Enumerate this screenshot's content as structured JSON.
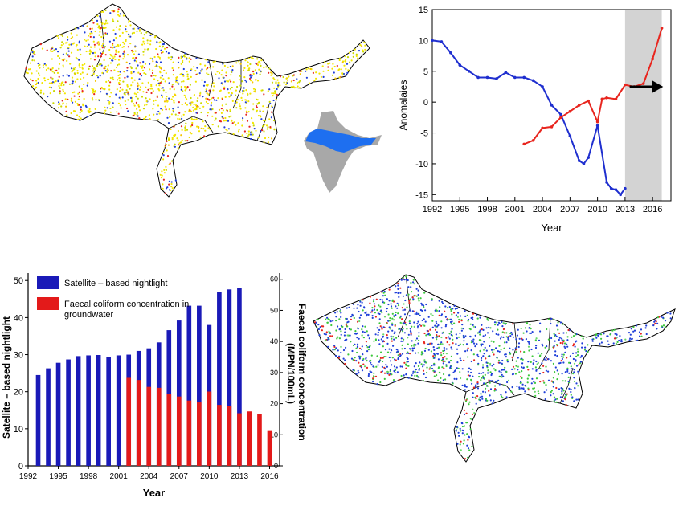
{
  "chart_data": [
    {
      "type": "line",
      "title": "",
      "xlabel": "Year",
      "ylabel": "Anomalaies",
      "xlim": [
        1992,
        2018
      ],
      "ylim": [
        -16,
        15
      ],
      "xticks": [
        "1992",
        "1995",
        "1998",
        "2001",
        "2004",
        "2007",
        "2010",
        "2013",
        "2016"
      ],
      "yticks": [
        "-15",
        "-10",
        "-5",
        "0",
        "5",
        "10",
        "15"
      ],
      "highlight_region": {
        "from": 2013,
        "to": 2017,
        "color": "#d3d3d3"
      },
      "trend_arrow": {
        "from": 2013.5,
        "to": 2016.8,
        "y": 2.5,
        "color": "#000000"
      },
      "series": [
        {
          "name": "",
          "color": "#1f2fcf",
          "x": [
            1992,
            1993,
            1994,
            1995,
            1996,
            1997,
            1998,
            1999,
            2000,
            2001,
            2002,
            2003,
            2004,
            2005,
            2006,
            2007,
            2008,
            2008.5,
            2009,
            2010,
            2011,
            2011.5,
            2012,
            2012.5,
            2013
          ],
          "y": [
            10,
            9.8,
            8,
            6,
            5,
            4,
            4,
            3.8,
            4.8,
            4,
            4,
            3.5,
            2.5,
            -0.5,
            -2,
            -5.5,
            -9.5,
            -10,
            -9,
            -3.8,
            -13,
            -14,
            -14.2,
            -15,
            -14
          ]
        },
        {
          "name": "",
          "color": "#e8251e",
          "x": [
            2002,
            2003,
            2004,
            2005,
            2006,
            2007,
            2008,
            2009,
            2010,
            2010.5,
            2011,
            2012,
            2013,
            2014,
            2015,
            2016,
            2017
          ],
          "y": [
            -6.8,
            -6.2,
            -4.2,
            -4,
            -2.5,
            -1.5,
            -0.5,
            0.2,
            -3.2,
            0.5,
            0.7,
            0.5,
            2.8,
            2.5,
            3,
            7,
            12
          ]
        }
      ]
    },
    {
      "type": "bar",
      "title": "",
      "xlabel": "Year",
      "ylabel": "Satellite – based nightlight",
      "y2label": "Faecal coliform concentration (MPN/100mL)",
      "ylim": [
        0,
        52
      ],
      "y2lim": [
        0,
        62
      ],
      "xlim": [
        1992,
        2017
      ],
      "xticks": [
        "1992",
        "1995",
        "1998",
        "2001",
        "2004",
        "2007",
        "2010",
        "2013",
        "2016"
      ],
      "yticks": [
        "0",
        "10",
        "20",
        "30",
        "40",
        "50"
      ],
      "y2ticks": [
        "0",
        "10",
        "20",
        "30",
        "40",
        "50",
        "60"
      ],
      "legend": {
        "position": "top-left"
      },
      "series": [
        {
          "name": "Satellite – based nightlight",
          "color": "#1a1ab8",
          "axis": "left",
          "x": [
            1993,
            1994,
            1995,
            1996,
            1997,
            1998,
            1999,
            2000,
            2001,
            2002,
            2003,
            2004,
            2005,
            2006,
            2007,
            2008,
            2009,
            2010,
            2011,
            2012,
            2013
          ],
          "values": [
            24.5,
            26.3,
            27.8,
            28.7,
            29.6,
            29.8,
            29.9,
            29.3,
            29.8,
            30.0,
            31.0,
            31.7,
            33.3,
            36.6,
            39.2,
            43.2,
            43.2,
            38.0,
            47.0,
            47.6,
            48.0
          ]
        },
        {
          "name": "Faecal coliform concentration in groundwater",
          "color": "#e31a1a",
          "axis": "right",
          "x": [
            2002,
            2003,
            2004,
            2005,
            2006,
            2007,
            2008,
            2009,
            2010,
            2011,
            2012,
            2013,
            2014,
            2015,
            2016
          ],
          "values": [
            28.3,
            27.6,
            25.4,
            25.1,
            23.2,
            22.3,
            21.0,
            20.4,
            23.9,
            19.6,
            19.2,
            16.9,
            17.5,
            16.7,
            11.2
          ]
        }
      ]
    }
  ],
  "maps": {
    "top_dot_colors": [
      "#f2e600",
      "#c9d900",
      "#1f3fd9",
      "#e8251e",
      "#f5c400"
    ],
    "top_dot_weights": [
      0.55,
      0.15,
      0.15,
      0.1,
      0.05
    ],
    "bottom_dot_colors": [
      "#1f3fd9",
      "#3cc83c",
      "#e8251e",
      "#6ad86a"
    ],
    "bottom_dot_weights": [
      0.55,
      0.3,
      0.1,
      0.05
    ],
    "inset_highlight_color": "#1e6ff0",
    "inset_base_color": "#a8a8a8"
  }
}
